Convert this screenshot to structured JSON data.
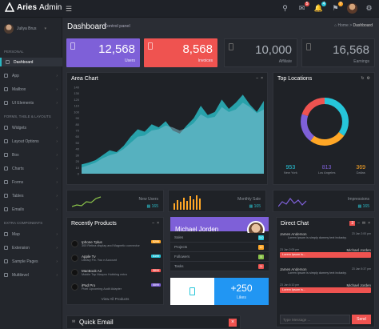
{
  "brand": {
    "name_bold": "Aries",
    "name_light": "Admin"
  },
  "topbar": {
    "menu_icon": "hamburger-icon",
    "badges": [
      {
        "icon": "search-icon",
        "count": ""
      },
      {
        "icon": "envelope-icon",
        "count": "5",
        "color": "#ef5350"
      },
      {
        "icon": "bell-icon",
        "count": "4",
        "color": "#26c6da"
      },
      {
        "icon": "flag-icon",
        "count": "7",
        "color": "#ffa726"
      }
    ]
  },
  "sidebar": {
    "user": "Juliya Brus",
    "sections": [
      "Personal",
      "Forms, Table & Layouts",
      "Extra Components"
    ],
    "items": [
      "Dashboard",
      "App",
      "Mailbox",
      "UI Elements",
      "Widgets",
      "Layout Options",
      "Box",
      "Charts",
      "Forms",
      "Tables",
      "Emails",
      "Map",
      "Extension",
      "Sample Pages",
      "Multilevel"
    ]
  },
  "header": {
    "title": "Dashboard",
    "subtitle": "Control panel",
    "crumb_home": "Home",
    "crumb_current": "Dashboard",
    "crumb_sep": ">"
  },
  "stats": [
    {
      "value": "12,568",
      "label": "Users",
      "color": "#7e60d8"
    },
    {
      "value": "8,568",
      "label": "Invoices",
      "color": "#ef5350"
    },
    {
      "value": "10,000",
      "label": "Affiliate",
      "color": "#23262c"
    },
    {
      "value": "16,568",
      "label": "Earnings",
      "color": "#23262c"
    }
  ],
  "area_chart": {
    "title": "Area Chart",
    "y_ticks": [
      "140",
      "130",
      "120",
      "110",
      "100",
      "90",
      "80",
      "70",
      "60",
      "50",
      "40",
      "30",
      "20",
      "10",
      "0"
    ],
    "chart_data": {
      "type": "area",
      "y_ticks": [
        "140",
        "130",
        "120",
        "110",
        "100",
        "90",
        "80",
        "70",
        "60",
        "50",
        "40",
        "30",
        "20",
        "10",
        "0"
      ],
      "ylim": [
        0,
        140
      ],
      "series": [
        {
          "color": "#2ab7c2",
          "values": [
            15,
            18,
            22,
            30,
            38,
            35,
            45,
            60,
            72,
            68,
            80,
            75,
            85,
            70,
            65,
            78,
            90,
            110,
            95,
            100,
            120,
            105,
            115,
            128,
            112,
            100,
            118
          ]
        },
        {
          "color": "#7cbfd0",
          "values": [
            10,
            14,
            18,
            25,
            30,
            33,
            40,
            50,
            60,
            62,
            70,
            72,
            78,
            75,
            70,
            74,
            82,
            96,
            90,
            92,
            108,
            100,
            104,
            115,
            108,
            98,
            104
          ]
        }
      ]
    }
  },
  "locations": {
    "title": "Top Locations",
    "donut": [
      {
        "value": 35,
        "color": "#26c6da"
      },
      {
        "value": 25,
        "color": "#ffa726"
      },
      {
        "value": 20,
        "color": "#7e60d8"
      },
      {
        "value": 20,
        "color": "#ef5350"
      }
    ],
    "stats": [
      {
        "value": "953",
        "label": "New York",
        "color": "#26c6da"
      },
      {
        "value": "813",
        "label": "Los Angeles",
        "color": "#7e60d8"
      },
      {
        "value": "369",
        "label": "Dallas",
        "color": "#ffa726"
      }
    ]
  },
  "mini": [
    {
      "label": "New Users",
      "value": "165"
    },
    {
      "label": "Monthly Sale",
      "value": "165"
    },
    {
      "label": "Impressions",
      "value": "165"
    }
  ],
  "products": {
    "title": "Recently Products",
    "items": [
      {
        "name": "Iphone 7plus",
        "desc": "300 Retina display and Magnetic connector",
        "price": "$299",
        "color": "#ffa726"
      },
      {
        "name": "Apple Tv",
        "desc": "Library Fix. You n Account",
        "price": "$199",
        "color": "#26c6da"
      },
      {
        "name": "MacBook Air",
        "desc": "Mobile Top Macpro Hubbing extra",
        "price": "$899",
        "color": "#ef5350"
      },
      {
        "name": "iPad Pro",
        "desc": "Pixel Upcoming Audit Adapter",
        "price": "$599",
        "color": "#7e60d8"
      }
    ],
    "footer": "View All Products"
  },
  "profile": {
    "name": "Michael Jorden",
    "role": "Developer",
    "rows": [
      {
        "label": "Sales",
        "badge": "310",
        "color": "#26c6da"
      },
      {
        "label": "Projects",
        "badge": "12",
        "color": "#ffa726"
      },
      {
        "label": "Followers",
        "badge": "5",
        "color": "#8bc34a"
      },
      {
        "label": "Tasks",
        "badge": "21",
        "color": "#ef5350"
      }
    ],
    "likes": "+250",
    "likes_label": "Likes"
  },
  "chat": {
    "title": "Direct Chat",
    "badge": "3",
    "messages": [
      {
        "name": "James Anderson",
        "time": "23 Jan 2:00 pm",
        "text": "Lorem Ipsum is simply dummy text industry.",
        "side": "left"
      },
      {
        "name": "Michael Jorden",
        "time": "23 Jan 2:05 pm",
        "text": "Lorem Ipsum is...",
        "side": "right"
      },
      {
        "name": "James Anderson",
        "time": "23 Jan 5:37 pm",
        "text": "Lorem Ipsum is simply dummy text industry.",
        "side": "left"
      },
      {
        "name": "Michael Jorden",
        "time": "23 Jan 6:10 pm",
        "text": "Lorem Ipsum is...",
        "side": "right"
      }
    ],
    "placeholder": "Type Message ...",
    "send": "Send"
  },
  "quick_email": {
    "title": "Quick Email"
  }
}
